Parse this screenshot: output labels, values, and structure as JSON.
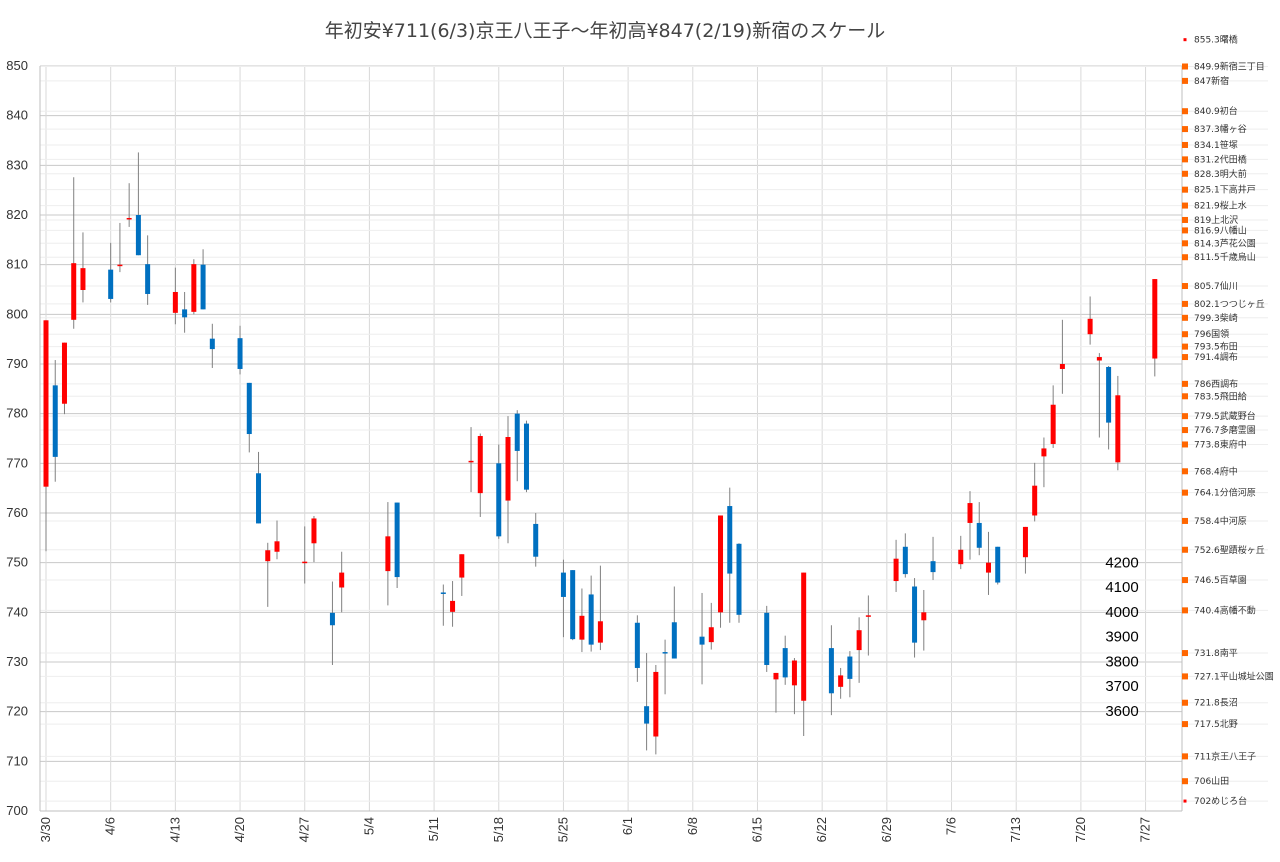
{
  "chart_data": {
    "type": "candlestick",
    "title": "年初安¥711(6/3)京王八王子～年初高¥847(2/19)新宿のスケール",
    "ylim": [
      700,
      850
    ],
    "yticks": [
      700,
      710,
      720,
      730,
      740,
      750,
      760,
      770,
      780,
      790,
      800,
      810,
      820,
      830,
      840,
      850
    ],
    "xticks": [
      "3/30",
      "4/6",
      "4/13",
      "4/20",
      "4/27",
      "5/4",
      "5/11",
      "5/18",
      "5/25",
      "6/1",
      "6/8",
      "6/15",
      "6/22",
      "6/29",
      "7/6",
      "7/13",
      "7/20",
      "7/27"
    ],
    "grid": true,
    "colors": {
      "up": "#ff0000",
      "down": "#0070c0",
      "wick": "#808080",
      "marker": "#ff6600",
      "grid": "#d9d9d9"
    },
    "candles": [
      {
        "day": 0,
        "o": 765.3,
        "c": 798.8,
        "h": 798.8,
        "l": 752.3
      },
      {
        "day": 1,
        "o": 785.7,
        "c": 771.3,
        "h": 790.8,
        "l": 766.3
      },
      {
        "day": 2,
        "o": 782.0,
        "c": 794.3,
        "h": 794.3,
        "l": 779.9
      },
      {
        "day": 3,
        "o": 798.9,
        "c": 810.3,
        "h": 827.6,
        "l": 797.1
      },
      {
        "day": 4,
        "o": 804.9,
        "c": 809.3,
        "h": 816.5,
        "l": 802.4
      },
      {
        "day": 7,
        "o": 809.0,
        "c": 803.1,
        "h": 814.4,
        "l": 802.4
      },
      {
        "day": 8,
        "o": 810.0,
        "c": 810.0,
        "h": 818.4,
        "l": 808.5
      },
      {
        "day": 9,
        "o": 819.4,
        "c": 819.4,
        "h": 826.4,
        "l": 817.6
      },
      {
        "day": 10,
        "o": 820.0,
        "c": 811.9,
        "h": 832.6,
        "l": 811.9
      },
      {
        "day": 11,
        "o": 810.1,
        "c": 804.1,
        "h": 815.9,
        "l": 801.9
      },
      {
        "day": 14,
        "o": 800.3,
        "c": 804.5,
        "h": 809.4,
        "l": 798.0
      },
      {
        "day": 15,
        "o": 801.0,
        "c": 799.4,
        "h": 804.5,
        "l": 796.3
      },
      {
        "day": 16,
        "o": 800.5,
        "c": 810.1,
        "h": 811.1,
        "l": 800.0
      },
      {
        "day": 17,
        "o": 810.0,
        "c": 801.0,
        "h": 813.1,
        "l": 801.0
      },
      {
        "day": 18,
        "o": 795.1,
        "c": 793.0,
        "h": 798.1,
        "l": 789.2
      },
      {
        "day": 21,
        "o": 795.2,
        "c": 789.0,
        "h": 797.7,
        "l": 787.9
      },
      {
        "day": 22,
        "o": 786.2,
        "c": 775.9,
        "h": 786.2,
        "l": 772.2
      },
      {
        "day": 23,
        "o": 768.0,
        "c": 757.9,
        "h": 772.3,
        "l": 757.9
      },
      {
        "day": 24,
        "o": 750.3,
        "c": 752.5,
        "h": 754.0,
        "l": 741.1
      },
      {
        "day": 25,
        "o": 752.2,
        "c": 754.3,
        "h": 758.5,
        "l": 750.7
      },
      {
        "day": 28,
        "o": 750.2,
        "c": 750.2,
        "h": 757.3,
        "l": 745.8
      },
      {
        "day": 29,
        "o": 753.9,
        "c": 758.9,
        "h": 759.4,
        "l": 750.1
      },
      {
        "day": 31,
        "o": 739.9,
        "c": 737.4,
        "h": 746.2,
        "l": 729.4
      },
      {
        "day": 32,
        "o": 745.0,
        "c": 748.0,
        "h": 752.2,
        "l": 740.0
      },
      {
        "day": 37,
        "o": 748.3,
        "c": 755.3,
        "h": 762.2,
        "l": 741.4
      },
      {
        "day": 38,
        "o": 762.1,
        "c": 747.1,
        "h": 762.1,
        "l": 744.9
      },
      {
        "day": 43,
        "o": 744.0,
        "c": 743.8,
        "h": 745.6,
        "l": 737.3
      },
      {
        "day": 44,
        "o": 740.1,
        "c": 742.3,
        "h": 746.3,
        "l": 737.1
      },
      {
        "day": 45,
        "o": 747.0,
        "c": 751.7,
        "h": 751.7,
        "l": 743.3
      },
      {
        "day": 46,
        "o": 770.5,
        "c": 770.5,
        "h": 777.3,
        "l": 764.2
      },
      {
        "day": 47,
        "o": 764.0,
        "c": 775.5,
        "h": 776.0,
        "l": 759.2
      },
      {
        "day": 49,
        "o": 770.0,
        "c": 755.3,
        "h": 773.8,
        "l": 754.8
      },
      {
        "day": 50,
        "o": 762.5,
        "c": 775.3,
        "h": 779.5,
        "l": 753.9
      },
      {
        "day": 51,
        "o": 780.0,
        "c": 772.5,
        "h": 780.7,
        "l": 766.4
      },
      {
        "day": 52,
        "o": 778.0,
        "c": 764.7,
        "h": 778.6,
        "l": 764.2
      },
      {
        "day": 53,
        "o": 757.8,
        "c": 751.2,
        "h": 760.0,
        "l": 749.2
      },
      {
        "day": 56,
        "o": 748.0,
        "c": 743.1,
        "h": 750.6,
        "l": 735.0
      },
      {
        "day": 57,
        "o": 748.5,
        "c": 734.6,
        "h": 748.5,
        "l": 734.4
      },
      {
        "day": 58,
        "o": 734.5,
        "c": 739.3,
        "h": 744.8,
        "l": 732.0
      },
      {
        "day": 59,
        "o": 743.6,
        "c": 733.5,
        "h": 747.4,
        "l": 732.1
      },
      {
        "day": 60,
        "o": 733.9,
        "c": 738.2,
        "h": 749.4,
        "l": 732.4
      },
      {
        "day": 64,
        "o": 737.9,
        "c": 728.8,
        "h": 739.4,
        "l": 726.0
      },
      {
        "day": 65,
        "o": 721.1,
        "c": 717.6,
        "h": 731.8,
        "l": 712.2
      },
      {
        "day": 66,
        "o": 715.0,
        "c": 728.0,
        "h": 729.4,
        "l": 711.4
      },
      {
        "day": 67,
        "o": 732.0,
        "c": 731.8,
        "h": 734.5,
        "l": 723.5
      },
      {
        "day": 68,
        "o": 738.0,
        "c": 730.7,
        "h": 745.2,
        "l": 730.7
      },
      {
        "day": 71,
        "o": 735.1,
        "c": 733.5,
        "h": 743.9,
        "l": 725.5
      },
      {
        "day": 72,
        "o": 734.0,
        "c": 737.0,
        "h": 741.9,
        "l": 732.5
      },
      {
        "day": 73,
        "o": 740.0,
        "c": 759.5,
        "h": 759.5,
        "l": 736.9
      },
      {
        "day": 74,
        "o": 761.4,
        "c": 747.8,
        "h": 765.1,
        "l": 737.9
      },
      {
        "day": 75,
        "o": 753.8,
        "c": 739.5,
        "h": 753.9,
        "l": 737.9
      },
      {
        "day": 78,
        "o": 739.9,
        "c": 729.4,
        "h": 741.3,
        "l": 728.0
      },
      {
        "day": 79,
        "o": 726.5,
        "c": 727.8,
        "h": 727.8,
        "l": 719.8
      },
      {
        "day": 80,
        "o": 732.8,
        "c": 726.9,
        "h": 735.3,
        "l": 725.4
      },
      {
        "day": 81,
        "o": 725.3,
        "c": 730.3,
        "h": 730.8,
        "l": 719.5
      },
      {
        "day": 82,
        "o": 722.2,
        "c": 748.0,
        "h": 748.0,
        "l": 715.1
      },
      {
        "day": 85,
        "o": 732.8,
        "c": 723.7,
        "h": 737.4,
        "l": 719.3
      },
      {
        "day": 86,
        "o": 725.0,
        "c": 727.3,
        "h": 728.8,
        "l": 722.6
      },
      {
        "day": 87,
        "o": 731.1,
        "c": 726.6,
        "h": 732.2,
        "l": 722.9
      },
      {
        "day": 88,
        "o": 732.4,
        "c": 736.4,
        "h": 739.0,
        "l": 725.8
      },
      {
        "day": 89,
        "o": 739.4,
        "c": 739.4,
        "h": 743.4,
        "l": 731.3
      },
      {
        "day": 92,
        "o": 746.3,
        "c": 750.8,
        "h": 754.6,
        "l": 744.1
      },
      {
        "day": 93,
        "o": 753.2,
        "c": 747.7,
        "h": 755.9,
        "l": 747.0
      },
      {
        "day": 94,
        "o": 745.2,
        "c": 733.9,
        "h": 746.9,
        "l": 730.9
      },
      {
        "day": 95,
        "o": 738.4,
        "c": 740.0,
        "h": 744.5,
        "l": 732.3
      },
      {
        "day": 96,
        "o": 750.3,
        "c": 748.1,
        "h": 755.2,
        "l": 746.5
      },
      {
        "day": 99,
        "o": 749.7,
        "c": 752.6,
        "h": 755.4,
        "l": 748.7
      },
      {
        "day": 100,
        "o": 758.0,
        "c": 762.0,
        "h": 764.4,
        "l": 750.6
      },
      {
        "day": 101,
        "o": 758.0,
        "c": 753.0,
        "h": 762.2,
        "l": 751.5
      },
      {
        "day": 102,
        "o": 748.0,
        "c": 750.0,
        "h": 756.2,
        "l": 743.5
      },
      {
        "day": 103,
        "o": 753.2,
        "c": 746.0,
        "h": 753.2,
        "l": 745.6
      },
      {
        "day": 106,
        "o": 751.1,
        "c": 757.2,
        "h": 757.2,
        "l": 747.8
      },
      {
        "day": 107,
        "o": 759.5,
        "c": 765.5,
        "h": 770.1,
        "l": 758.3
      },
      {
        "day": 108,
        "o": 771.4,
        "c": 773.0,
        "h": 775.2,
        "l": 765.2
      },
      {
        "day": 109,
        "o": 773.9,
        "c": 781.8,
        "h": 785.7,
        "l": 773.1
      },
      {
        "day": 110,
        "o": 789.0,
        "c": 790.0,
        "h": 798.9,
        "l": 784.0
      },
      {
        "day": 113,
        "o": 796.0,
        "c": 799.1,
        "h": 803.6,
        "l": 793.9
      },
      {
        "day": 114,
        "o": 790.7,
        "c": 791.4,
        "h": 792.2,
        "l": 775.2
      },
      {
        "day": 115,
        "o": 789.4,
        "c": 778.2,
        "h": 789.6,
        "l": 772.8
      },
      {
        "day": 116,
        "o": 770.2,
        "c": 783.7,
        "h": 787.6,
        "l": 768.6
      },
      {
        "day": 120,
        "o": 791.1,
        "c": 807.1,
        "h": 807.1,
        "l": 787.5
      }
    ],
    "index_axis": {
      "labels": [
        "3600",
        "3700",
        "3800",
        "3900",
        "4000",
        "4100",
        "4200"
      ],
      "values": [
        3600,
        3700,
        3800,
        3900,
        4000,
        4100,
        4200
      ],
      "scale_a": 0.049815,
      "scale_b": 540.85
    },
    "stations": [
      {
        "price": 855.3,
        "label": "855.3曙橋"
      },
      {
        "price": 849.9,
        "label": "849.9新宿三丁目"
      },
      {
        "price": 847,
        "label": "847新宿"
      },
      {
        "price": 840.9,
        "label": "840.9初台"
      },
      {
        "price": 837.3,
        "label": "837.3幡ヶ谷"
      },
      {
        "price": 834.1,
        "label": "834.1笹塚"
      },
      {
        "price": 831.2,
        "label": "831.2代田橋"
      },
      {
        "price": 828.3,
        "label": "828.3明大前"
      },
      {
        "price": 825.1,
        "label": "825.1下高井戸"
      },
      {
        "price": 821.9,
        "label": "821.9桜上水"
      },
      {
        "price": 819,
        "label": "819上北沢"
      },
      {
        "price": 816.9,
        "label": "816.9八幡山"
      },
      {
        "price": 814.3,
        "label": "814.3芦花公園"
      },
      {
        "price": 811.5,
        "label": "811.5千歳烏山"
      },
      {
        "price": 805.7,
        "label": "805.7仙川"
      },
      {
        "price": 802.1,
        "label": "802.1つつじヶ丘"
      },
      {
        "price": 799.3,
        "label": "799.3柴崎"
      },
      {
        "price": 796,
        "label": "796国領"
      },
      {
        "price": 793.5,
        "label": "793.5布田"
      },
      {
        "price": 791.4,
        "label": "791.4調布"
      },
      {
        "price": 786,
        "label": "786西調布"
      },
      {
        "price": 783.5,
        "label": "783.5飛田給"
      },
      {
        "price": 779.5,
        "label": "779.5武蔵野台"
      },
      {
        "price": 776.7,
        "label": "776.7多磨霊園"
      },
      {
        "price": 773.8,
        "label": "773.8東府中"
      },
      {
        "price": 768.4,
        "label": "768.4府中"
      },
      {
        "price": 764.1,
        "label": "764.1分倍河原"
      },
      {
        "price": 758.4,
        "label": "758.4中河原"
      },
      {
        "price": 752.6,
        "label": "752.6聖蹟桜ヶ丘"
      },
      {
        "price": 746.5,
        "label": "746.5百草園"
      },
      {
        "price": 740.4,
        "label": "740.4高幡不動"
      },
      {
        "price": 731.8,
        "label": "731.8南平"
      },
      {
        "price": 727.1,
        "label": "727.1平山城址公園"
      },
      {
        "price": 721.8,
        "label": "721.8長沼"
      },
      {
        "price": 717.5,
        "label": "717.5北野"
      },
      {
        "price": 711,
        "label": "711京王八王子"
      },
      {
        "price": 706,
        "label": "706山田"
      },
      {
        "price": 702,
        "label": "702めじろ台"
      }
    ]
  }
}
